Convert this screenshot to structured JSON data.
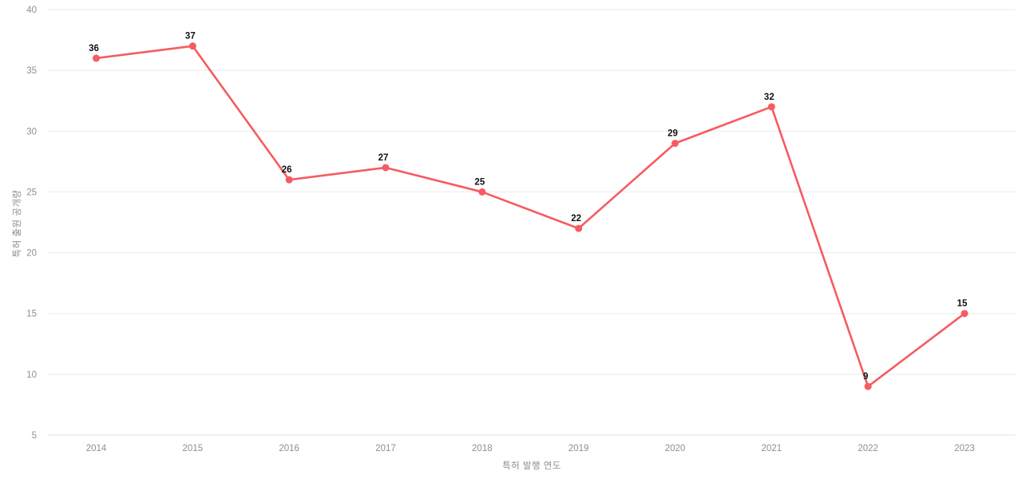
{
  "chart_data": {
    "type": "line",
    "title": "",
    "x": [
      "2014",
      "2015",
      "2016",
      "2017",
      "2018",
      "2019",
      "2020",
      "2021",
      "2022",
      "2023"
    ],
    "series": [
      {
        "name": "특허 출원 공개량",
        "values": [
          36,
          37,
          26,
          27,
          25,
          22,
          29,
          32,
          9,
          15
        ]
      }
    ],
    "xlabel": "특허 발행 연도",
    "ylabel": "특허 출원 공개량",
    "ylim": [
      5,
      40
    ],
    "yticks": [
      5,
      10,
      15,
      20,
      25,
      30,
      35,
      40
    ],
    "grid": true,
    "legend": "none",
    "data_labels": true,
    "colors": {
      "line": "#f55c61",
      "marker": "#f55c61",
      "grid": "#e9e9e9",
      "axis_line": "#dde3ec",
      "tick_text": "#8f8f8f",
      "axis_title_text": "#8c8c8c",
      "data_label_text": "#111111",
      "background": "#ffffff"
    }
  }
}
